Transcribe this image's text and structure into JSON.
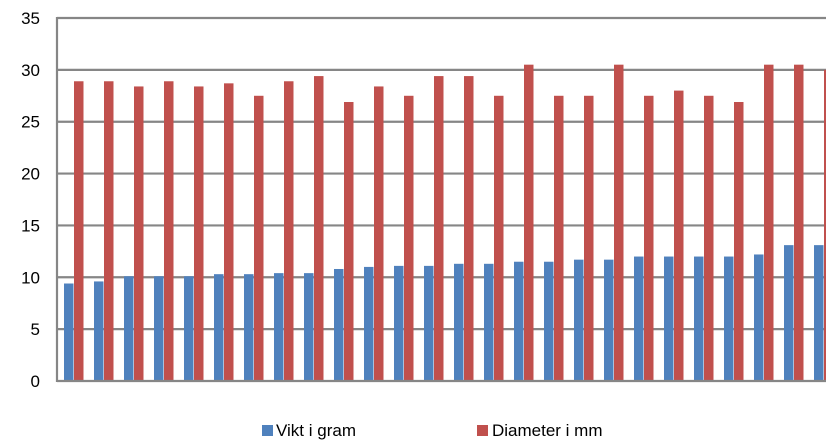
{
  "chart_data": {
    "type": "bar",
    "ylim": [
      0,
      35
    ],
    "yticks": [
      "0",
      "5",
      "10",
      "15",
      "20",
      "25",
      "30",
      "35"
    ],
    "ytick_values": [
      0,
      5,
      10,
      15,
      20,
      25,
      30,
      35
    ],
    "grid": "horizontal",
    "legend_position": "bottom",
    "categories": [
      "",
      "",
      "",
      "",
      "",
      "",
      "",
      "",
      "",
      "",
      "",
      "",
      "",
      "",
      "",
      "",
      "",
      "",
      "",
      "",
      "",
      "",
      "",
      "",
      "",
      ""
    ],
    "series": [
      {
        "name": "Vikt i gram",
        "color": "#4F81BD",
        "values": [
          9.4,
          9.6,
          10.1,
          10.1,
          10.1,
          10.3,
          10.3,
          10.4,
          10.4,
          10.8,
          11.0,
          11.1,
          11.1,
          11.3,
          11.3,
          11.5,
          11.5,
          11.7,
          11.7,
          12.0,
          12.0,
          12.0,
          12.0,
          12.2,
          13.1,
          13.1
        ]
      },
      {
        "name": "Diameter i mm",
        "color": "#C0504D",
        "values": [
          28.9,
          28.9,
          28.4,
          28.9,
          28.4,
          28.7,
          27.5,
          28.9,
          29.4,
          26.9,
          28.4,
          27.5,
          29.4,
          29.4,
          27.5,
          30.5,
          27.5,
          27.5,
          30.5,
          27.5,
          28.0,
          27.5,
          26.9,
          30.5,
          30.5,
          30.0
        ]
      }
    ]
  }
}
